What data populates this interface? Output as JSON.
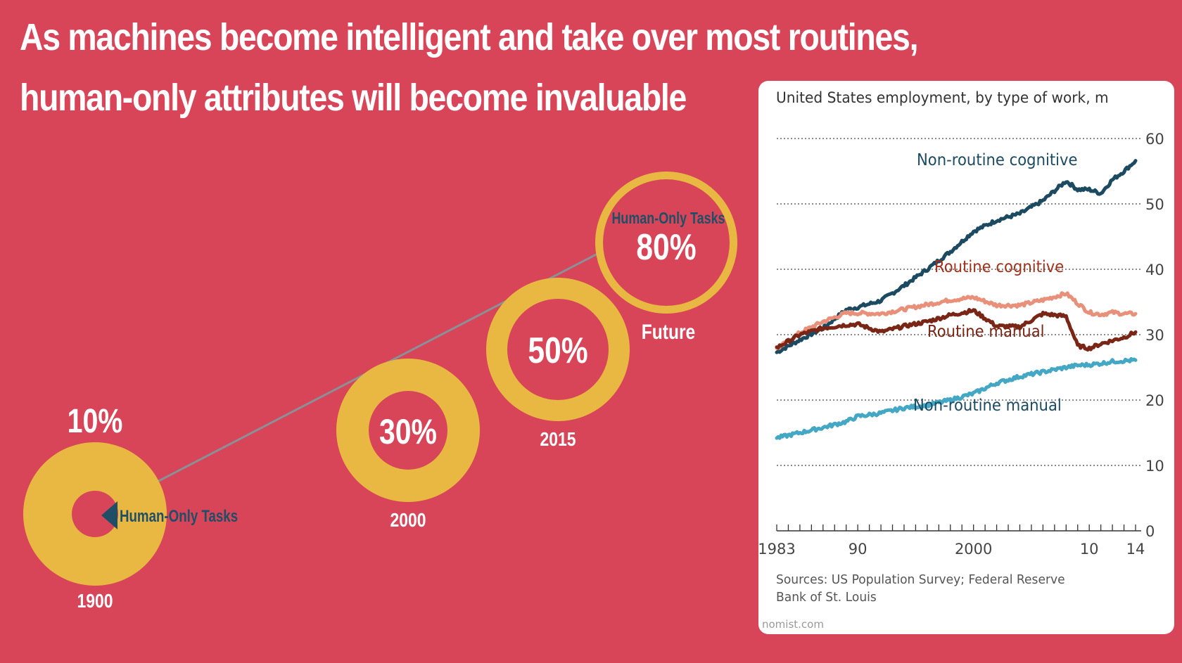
{
  "title": {
    "line1": "As machines become intelligent and take over most routines,",
    "line2": "human-only attributes will become invaluable"
  },
  "colors": {
    "background": "#d84559",
    "ring": "#e8b843",
    "label_dark": "#1f4f66",
    "navy_series": "#1c4a61",
    "salmon_series": "#e8907a",
    "brown_series": "#7a2616",
    "cyan_series": "#44a7c4"
  },
  "timeline": {
    "legend_label": "Human-Only Tasks",
    "milestones": [
      {
        "year": "1900",
        "percent": "10%",
        "share": 0.1
      },
      {
        "year": "2000",
        "percent": "30%",
        "share": 0.3
      },
      {
        "year": "2015",
        "percent": "50%",
        "share": 0.5
      },
      {
        "year": "Future",
        "percent": "80%",
        "share": 0.8,
        "inner_label": "Human-Only Tasks"
      }
    ]
  },
  "chart_data": {
    "type": "line",
    "title": "United States employment, by type of work, m",
    "ylim": [
      0,
      60
    ],
    "yticks": [
      0,
      10,
      20,
      30,
      40,
      50,
      60
    ],
    "xlim": [
      1983,
      2014
    ],
    "xtick_labels": [
      {
        "x": 1983,
        "label": "1983"
      },
      {
        "x": 1990,
        "label": "90"
      },
      {
        "x": 2000,
        "label": "2000"
      },
      {
        "x": 2010,
        "label": "10"
      },
      {
        "x": 2014,
        "label": "14"
      }
    ],
    "grid": true,
    "source": [
      "Sources: US Population Survey; Federal Reserve",
      "Bank of St. Louis"
    ],
    "credit": "nomist.com",
    "series": [
      {
        "name": "Non-routine cognitive",
        "color": "#1c4a61",
        "x": [
          1983,
          1985,
          1987,
          1989,
          1990,
          1992,
          1994,
          1996,
          1998,
          2000,
          2002,
          2004,
          2006,
          2008,
          2009,
          2010,
          2011,
          2012,
          2013,
          2014
        ],
        "values": [
          27.3,
          29.2,
          31.0,
          33.8,
          34.2,
          35.2,
          37.5,
          40.0,
          42.7,
          45.8,
          47.5,
          48.5,
          50.5,
          53.5,
          52.2,
          52.2,
          51.6,
          53.7,
          55.0,
          56.6
        ]
      },
      {
        "name": "Routine cognitive",
        "color": "#e8907a",
        "x": [
          1983,
          1985,
          1987,
          1989,
          1990,
          1992,
          1994,
          1996,
          1998,
          2000,
          2002,
          2004,
          2006,
          2008,
          2009,
          2010,
          2011,
          2012,
          2013,
          2014
        ],
        "values": [
          27.8,
          30.3,
          32.0,
          33.3,
          33.3,
          33.2,
          33.9,
          34.6,
          35.3,
          35.7,
          34.5,
          34.5,
          35.3,
          36.3,
          34.8,
          33.4,
          33.1,
          33.4,
          33.2,
          33.2
        ]
      },
      {
        "name": "Routine manual",
        "color": "#7a2616",
        "x": [
          1983,
          1985,
          1987,
          1989,
          1990,
          1992,
          1994,
          1996,
          1998,
          2000,
          2002,
          2004,
          2006,
          2008,
          2009,
          2010,
          2011,
          2012,
          2013,
          2014
        ],
        "values": [
          28.0,
          30.0,
          31.0,
          31.5,
          31.6,
          30.4,
          31.3,
          32.0,
          33.0,
          33.7,
          31.3,
          31.2,
          33.2,
          32.8,
          28.3,
          27.9,
          28.6,
          29.1,
          29.6,
          30.4
        ]
      },
      {
        "name": "Non-routine manual",
        "color": "#44a7c4",
        "x": [
          1983,
          1985,
          1987,
          1989,
          1990,
          1992,
          1994,
          1996,
          1998,
          2000,
          2002,
          2004,
          2006,
          2008,
          2009,
          2010,
          2011,
          2012,
          2013,
          2014
        ],
        "values": [
          14.2,
          15.0,
          15.8,
          16.7,
          17.5,
          18.0,
          18.8,
          19.2,
          20.0,
          21.0,
          22.6,
          23.6,
          24.3,
          25.0,
          25.3,
          25.4,
          25.6,
          25.9,
          26.0,
          26.1
        ]
      }
    ]
  }
}
